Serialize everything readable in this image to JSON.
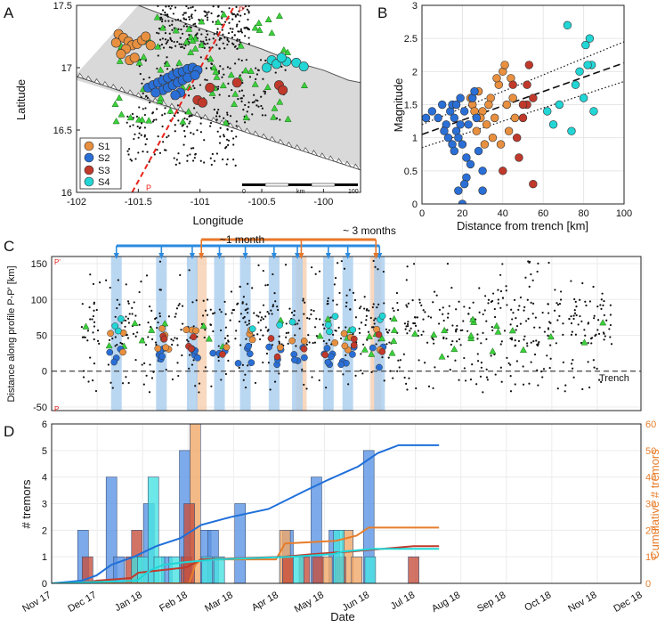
{
  "figure": {
    "panel_labels": [
      "A",
      "B",
      "C",
      "D"
    ]
  },
  "colors": {
    "S1": "#e8903f",
    "S2": "#2a6fd6",
    "S3": "#c0392b",
    "S4": "#22d6d6",
    "tremor_green": "#3bd13b",
    "map_land": "#d9d9d9",
    "profile_red": "#e8231b",
    "cum_blue": "#1f6fd9",
    "cum_orange": "#e77d2b",
    "cum_red": "#c0392b",
    "cum_cyan": "#1fd6d6",
    "month_bar": "#2b8be0",
    "quarter_bar": "#e8772a"
  },
  "chart_data": [
    {
      "panel": "A",
      "type": "scatter",
      "title": "",
      "xlabel": "Longitude",
      "ylabel": "Latitude",
      "xlim": [
        -102,
        -99.7
      ],
      "ylim": [
        16,
        17.5
      ],
      "xticks": [
        "-102",
        "-101.5",
        "-101",
        "-100.5",
        "-100"
      ],
      "yticks": [
        "16",
        "16.5",
        "17",
        "17.5"
      ],
      "legend": [
        "S1",
        "S2",
        "S3",
        "S4"
      ],
      "legend_position": "bottom-left",
      "profile_labels": [
        "P",
        "P'"
      ],
      "scalebar": {
        "ticks": [
          "0",
          "km",
          "100"
        ]
      },
      "series": [
        {
          "name": "S1",
          "points": [
            [
              -101.66,
              17.27
            ],
            [
              -101.62,
              17.24
            ],
            [
              -101.58,
              17.21
            ],
            [
              -101.55,
              17.18
            ],
            [
              -101.6,
              17.15
            ],
            [
              -101.64,
              17.11
            ],
            [
              -101.51,
              17.19
            ],
            [
              -101.47,
              17.22
            ],
            [
              -101.44,
              17.25
            ],
            [
              -101.4,
              17.18
            ],
            [
              -101.57,
              17.06
            ],
            [
              -101.53,
              17.08
            ],
            [
              -101.68,
              17.2
            ]
          ]
        },
        {
          "name": "S2",
          "points": [
            [
              -101.42,
              16.84
            ],
            [
              -101.38,
              16.86
            ],
            [
              -101.34,
              16.88
            ],
            [
              -101.3,
              16.9
            ],
            [
              -101.26,
              16.92
            ],
            [
              -101.22,
              16.94
            ],
            [
              -101.18,
              16.96
            ],
            [
              -101.14,
              16.97
            ],
            [
              -101.1,
              16.99
            ],
            [
              -101.06,
              17.0
            ],
            [
              -101.02,
              16.98
            ],
            [
              -101.3,
              16.82
            ],
            [
              -101.26,
              16.84
            ],
            [
              -101.22,
              16.86
            ],
            [
              -101.18,
              16.88
            ],
            [
              -101.14,
              16.9
            ],
            [
              -101.1,
              16.92
            ],
            [
              -101.16,
              16.8
            ],
            [
              -101.2,
              16.78
            ],
            [
              -101.04,
              16.94
            ],
            [
              -101.36,
              16.8
            ]
          ]
        },
        {
          "name": "S3",
          "points": [
            [
              -100.92,
              16.84
            ],
            [
              -100.7,
              16.88
            ],
            [
              -100.36,
              16.86
            ],
            [
              -100.33,
              16.82
            ],
            [
              -101.02,
              16.74
            ],
            [
              -100.98,
              16.72
            ]
          ]
        },
        {
          "name": "S4",
          "points": [
            [
              -100.42,
              17.06
            ],
            [
              -100.38,
              17.03
            ],
            [
              -100.3,
              17.05
            ],
            [
              -100.22,
              17.04
            ],
            [
              -100.16,
              17.01
            ],
            [
              -100.46,
              17.0
            ],
            [
              -100.34,
              17.08
            ]
          ]
        }
      ]
    },
    {
      "panel": "B",
      "type": "scatter",
      "title": "",
      "xlabel": "Distance from trench [km]",
      "ylabel": "Magnitude",
      "xlim": [
        0,
        100
      ],
      "ylim": [
        0,
        3
      ],
      "xticks": [
        "0",
        "20",
        "40",
        "60",
        "80",
        "100"
      ],
      "yticks": [
        "0",
        "0.5",
        "1",
        "1.5",
        "2",
        "2.5",
        "3"
      ],
      "fit_lines": {
        "mean": [
          [
            0,
            1.05
          ],
          [
            100,
            2.13
          ]
        ],
        "upper": [
          [
            0,
            1.2
          ],
          [
            100,
            2.45
          ]
        ],
        "lower": [
          [
            0,
            0.85
          ],
          [
            100,
            1.85
          ]
        ]
      },
      "series": [
        {
          "name": "S1",
          "points": [
            [
              25,
              1.5
            ],
            [
              28,
              1.7
            ],
            [
              30,
              1.4
            ],
            [
              32,
              1.2
            ],
            [
              34,
              1.6
            ],
            [
              36,
              1.3
            ],
            [
              38,
              1.8
            ],
            [
              40,
              2.0
            ],
            [
              42,
              1.5
            ],
            [
              44,
              1.9
            ],
            [
              46,
              1.3
            ],
            [
              35,
              1.0
            ],
            [
              31,
              0.9
            ],
            [
              29,
              1.3
            ],
            [
              27,
              1.1
            ],
            [
              24,
              1.6
            ],
            [
              39,
              0.9
            ],
            [
              43,
              1.1
            ],
            [
              33,
              1.5
            ],
            [
              37,
              1.9
            ],
            [
              45,
              1.6
            ],
            [
              41,
              2.1
            ],
            [
              26,
              1.4
            ]
          ]
        },
        {
          "name": "S2",
          "points": [
            [
              2,
              1.3
            ],
            [
              5,
              1.4
            ],
            [
              8,
              1.3
            ],
            [
              10,
              1.5
            ],
            [
              12,
              1.2
            ],
            [
              14,
              1.4
            ],
            [
              15,
              1.5
            ],
            [
              16,
              1.3
            ],
            [
              17,
              1.1
            ],
            [
              18,
              1.0
            ],
            [
              19,
              1.2
            ],
            [
              20,
              0.9
            ],
            [
              21,
              1.4
            ],
            [
              22,
              0.7
            ],
            [
              23,
              1.2
            ],
            [
              25,
              1.6
            ],
            [
              26,
              1.7
            ],
            [
              27,
              1.3
            ],
            [
              28,
              0.8
            ],
            [
              30,
              0.5
            ],
            [
              20,
              0.0
            ],
            [
              18,
              0.2
            ],
            [
              22,
              0.4
            ],
            [
              24,
              0.6
            ],
            [
              15,
              0.9
            ],
            [
              13,
              1.0
            ],
            [
              11,
              1.1
            ],
            [
              17,
              1.5
            ],
            [
              19,
              1.6
            ],
            [
              16,
              0.8
            ],
            [
              21,
              0.3
            ],
            [
              30,
              0.2
            ]
          ]
        },
        {
          "name": "S3",
          "points": [
            [
              47,
              1.0
            ],
            [
              50,
              1.3
            ],
            [
              52,
              1.5
            ],
            [
              55,
              1.6
            ],
            [
              48,
              0.7
            ],
            [
              55,
              0.3
            ],
            [
              53,
              2.1
            ],
            [
              40,
              0.5
            ],
            [
              45,
              1.8
            ],
            [
              50,
              1.5
            ],
            [
              52,
              1.8
            ]
          ]
        },
        {
          "name": "S4",
          "points": [
            [
              72,
              2.7
            ],
            [
              81,
              2.4
            ],
            [
              83,
              2.5
            ],
            [
              84,
              2.1
            ],
            [
              82,
              2.1
            ],
            [
              78,
              2.0
            ],
            [
              76,
              1.8
            ],
            [
              80,
              1.6
            ],
            [
              85,
              1.4
            ],
            [
              68,
              1.5
            ],
            [
              65,
              1.2
            ],
            [
              74,
              1.1
            ],
            [
              62,
              1.4
            ]
          ]
        }
      ]
    },
    {
      "panel": "C",
      "type": "scatter",
      "title": "",
      "xlabel": "",
      "ylabel": "Distance along profile P-P' [km]",
      "ylim": [
        -55,
        160
      ],
      "yticks": [
        "-50",
        "0",
        "50",
        "100",
        "150"
      ],
      "profile_labels": [
        "P'",
        "P"
      ],
      "trench_label": "Trench",
      "brackets": {
        "month_label": "~1 month",
        "quarter_label": "~ 3 months"
      },
      "month_bands": [
        43.3,
        73.4,
        94.0,
        112.2,
        129.5,
        148.7,
        164.3,
        185.0,
        198.0,
        219.2
      ],
      "quarter_bands": [
        100.1,
        166.9,
        216.8
      ]
    },
    {
      "panel": "D",
      "type": "bar",
      "title": "",
      "xlabel": "Date",
      "ylabel": "# tremors",
      "y2label": "Cumulative # tremors",
      "ylim": [
        0,
        6
      ],
      "y2lim": [
        0,
        60
      ],
      "yticks": [
        "0",
        "1",
        "2",
        "3",
        "4",
        "5",
        "6"
      ],
      "y2ticks": [
        "0",
        "10",
        "20",
        "30",
        "40",
        "50",
        "60"
      ],
      "xticks": [
        "Nov 17",
        "Dec 17",
        "Jan 18",
        "Feb 18",
        "Mar 18",
        "Apr 18",
        "May 18",
        "Jun 18",
        "Jul 18",
        "Aug 18",
        "Sep 18",
        "Oct 18",
        "Nov 18",
        "Dec 18"
      ],
      "bar_series": [
        {
          "name": "S2",
          "values": [
            [
              21,
              2
            ],
            [
              40,
              4
            ],
            [
              45,
              1
            ],
            [
              65,
              3
            ],
            [
              77,
              1
            ],
            [
              89,
              5
            ],
            [
              103,
              2
            ],
            [
              108,
              2
            ],
            [
              126,
              3
            ],
            [
              158,
              2
            ],
            [
              177,
              4
            ],
            [
              189,
              2
            ],
            [
              212,
              5
            ]
          ]
        },
        {
          "name": "S1",
          "values": [
            [
              96,
              6
            ],
            [
              156,
              2
            ],
            [
              158,
              1
            ],
            [
              184,
              1
            ],
            [
              198,
              2
            ],
            [
              204,
              1
            ]
          ]
        },
        {
          "name": "S3",
          "values": [
            [
              24,
              1
            ],
            [
              53,
              1
            ],
            [
              57,
              2
            ],
            [
              90,
              1
            ],
            [
              92,
              3
            ],
            [
              158,
              1
            ],
            [
              169,
              1
            ],
            [
              178,
              1
            ],
            [
              193,
              1
            ],
            [
              242,
              1
            ]
          ]
        },
        {
          "name": "S4",
          "values": [
            [
              57,
              1
            ],
            [
              61,
              1
            ],
            [
              68,
              4
            ],
            [
              72,
              1
            ],
            [
              82,
              1
            ],
            [
              104,
              1
            ],
            [
              112,
              1
            ],
            [
              165,
              1
            ],
            [
              192,
              2
            ],
            [
              213,
              1
            ]
          ]
        }
      ],
      "cumulative_series": [
        {
          "name": "S2",
          "points": [
            [
              0,
              0
            ],
            [
              20,
              1
            ],
            [
              30,
              3
            ],
            [
              40,
              7
            ],
            [
              55,
              10
            ],
            [
              70,
              14
            ],
            [
              86,
              17
            ],
            [
              100,
              22
            ],
            [
              120,
              25
            ],
            [
              145,
              28
            ],
            [
              170,
              35
            ],
            [
              185,
              39
            ],
            [
              205,
              44
            ],
            [
              218,
              49
            ],
            [
              232,
              52
            ],
            [
              259,
              52
            ]
          ]
        },
        {
          "name": "S1",
          "points": [
            [
              0,
              0
            ],
            [
              40,
              0
            ],
            [
              92,
              0
            ],
            [
              96,
              7
            ],
            [
              100,
              9
            ],
            [
              150,
              9
            ],
            [
              156,
              15
            ],
            [
              190,
              16
            ],
            [
              204,
              18
            ],
            [
              212,
              21
            ],
            [
              259,
              21
            ]
          ]
        },
        {
          "name": "S3",
          "points": [
            [
              0,
              0
            ],
            [
              20,
              0
            ],
            [
              30,
              1
            ],
            [
              53,
              2
            ],
            [
              58,
              4
            ],
            [
              90,
              6
            ],
            [
              100,
              9
            ],
            [
              155,
              10
            ],
            [
              175,
              11
            ],
            [
              200,
              12
            ],
            [
              242,
              14
            ],
            [
              259,
              14
            ]
          ]
        },
        {
          "name": "S4",
          "points": [
            [
              0,
              0
            ],
            [
              57,
              1
            ],
            [
              66,
              5
            ],
            [
              75,
              7
            ],
            [
              90,
              8
            ],
            [
              110,
              9
            ],
            [
              160,
              10
            ],
            [
              188,
              11
            ],
            [
              195,
              12
            ],
            [
              215,
              13
            ],
            [
              259,
              13
            ]
          ]
        }
      ]
    }
  ]
}
